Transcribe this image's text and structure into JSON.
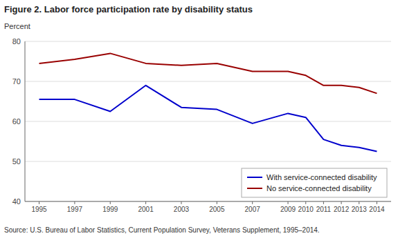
{
  "chart_data": {
    "type": "line",
    "title": "Figure 2. Labor force participation rate by disability status",
    "y_label": "Percent",
    "annotations": [
      "Source: U.S. Bureau of Labor Statistics, Current Population Survey, Veterans Supplement, 1995–2014."
    ],
    "x": [
      1995,
      1997,
      1999,
      2001,
      2003,
      2005,
      2007,
      2009,
      2010,
      2011,
      2012,
      2013,
      2014
    ],
    "series": [
      {
        "name": "With service-connected disability",
        "color": "#0000cc",
        "values": [
          65.5,
          65.5,
          62.5,
          69.0,
          63.5,
          63.0,
          59.5,
          62.0,
          61.0,
          55.5,
          54.0,
          53.5,
          52.5
        ]
      },
      {
        "name": "No service-connected disability",
        "color": "#990000",
        "values": [
          74.5,
          75.5,
          77.0,
          74.5,
          74.0,
          74.5,
          72.5,
          72.5,
          71.5,
          69.0,
          69.0,
          68.5,
          67.0
        ]
      }
    ],
    "xlim": [
      1994.2,
      2014.8
    ],
    "xticks": [
      1995,
      1997,
      1999,
      2001,
      2003,
      2005,
      2007,
      2009,
      2010,
      2011,
      2012,
      2013,
      2014
    ],
    "ylim": [
      40,
      80
    ],
    "yticks": [
      40,
      50,
      60,
      70,
      80
    ],
    "grid": true,
    "legend": "lower right"
  }
}
